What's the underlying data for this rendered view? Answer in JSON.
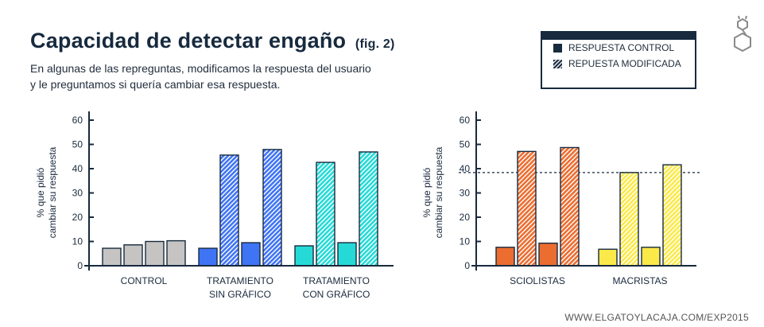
{
  "header": {
    "title": "Capacidad de detectar engaño",
    "fig": "(fig. 2)",
    "subtitle_line1": "En algunas de las repreguntas, modificamos la respuesta del usuario",
    "subtitle_line2": "y le preguntamos si quería cambiar esa respuesta."
  },
  "legend": {
    "items": [
      {
        "label": "RESPUESTA CONTROL",
        "style": "solid"
      },
      {
        "label": "REPUESTA MODIFICADA",
        "style": "hatched"
      }
    ]
  },
  "logo": "gato-y-caja-logo-icon",
  "footer": "WWW.ELGATOYLACAJA.COM/EXP2015",
  "colors": {
    "dark": "#172a3e",
    "control_gray": "#c6c4c3",
    "blue": "#3f74f5",
    "teal": "#25dad6",
    "orange": "#ec6d30",
    "yellow": "#fbe94a"
  },
  "chart_data": [
    {
      "type": "bar",
      "title": "",
      "xlabel": "",
      "ylabel": "% que pidió cambiar su respuesta",
      "ylabel_lines": [
        "% que pidió",
        "cambiar su respuesta"
      ],
      "ylim": [
        0,
        60
      ],
      "yticks": [
        0,
        10,
        20,
        30,
        40,
        50,
        60
      ],
      "grid": false,
      "groups": [
        {
          "label_lines": [
            "CONTROL"
          ],
          "color": "control_gray",
          "bars": [
            {
              "style": "solid",
              "value": 7.2
            },
            {
              "style": "solid",
              "value": 8.6
            },
            {
              "style": "solid",
              "value": 10.0
            },
            {
              "style": "solid",
              "value": 10.3
            }
          ]
        },
        {
          "label_lines": [
            "TRATAMIENTO",
            "SIN GRÁFICO"
          ],
          "color": "blue",
          "bars": [
            {
              "style": "solid",
              "value": 7.2
            },
            {
              "style": "hatched",
              "value": 45.6
            },
            {
              "style": "solid",
              "value": 9.5
            },
            {
              "style": "hatched",
              "value": 47.9
            }
          ]
        },
        {
          "label_lines": [
            "TRATAMIENTO",
            "CON GRÁFICO"
          ],
          "color": "teal",
          "bars": [
            {
              "style": "solid",
              "value": 8.2
            },
            {
              "style": "hatched",
              "value": 42.6
            },
            {
              "style": "solid",
              "value": 9.5
            },
            {
              "style": "hatched",
              "value": 46.9
            }
          ]
        }
      ]
    },
    {
      "type": "bar",
      "title": "",
      "xlabel": "",
      "ylabel": "% que pidió cambiar su respuesta",
      "ylabel_lines": [
        "% que pidió",
        "cambiar su respuesta"
      ],
      "ylim": [
        0,
        60
      ],
      "yticks": [
        0,
        10,
        20,
        30,
        40,
        50,
        60
      ],
      "grid": false,
      "reference_line": 38.4,
      "groups": [
        {
          "label_lines": [
            "SCIOLISTAS"
          ],
          "color": "orange",
          "bars": [
            {
              "style": "solid",
              "value": 7.6
            },
            {
              "style": "hatched",
              "value": 47.1
            },
            {
              "style": "solid",
              "value": 9.3
            },
            {
              "style": "hatched",
              "value": 48.7
            }
          ]
        },
        {
          "label_lines": [
            "MACRISTAS"
          ],
          "color": "yellow",
          "bars": [
            {
              "style": "solid",
              "value": 6.8
            },
            {
              "style": "hatched",
              "value": 38.4
            },
            {
              "style": "solid",
              "value": 7.6
            },
            {
              "style": "hatched",
              "value": 41.6
            }
          ]
        }
      ]
    }
  ]
}
